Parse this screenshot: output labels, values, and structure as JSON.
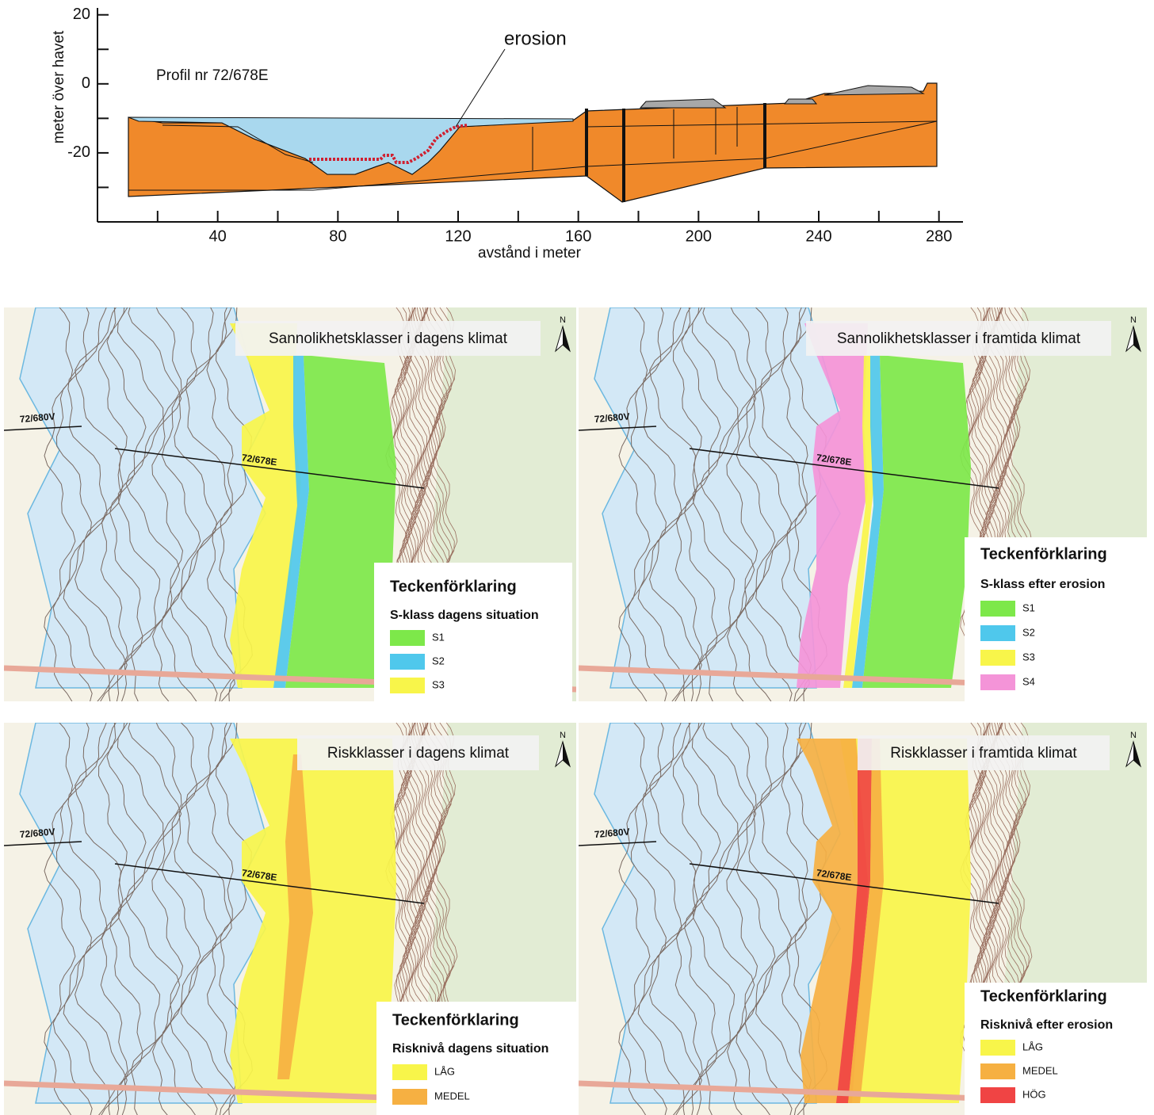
{
  "profile": {
    "title": "Profil nr 72/678E",
    "annotation": "erosion",
    "ylabel": "meter över havet",
    "xlabel": "avstånd i meter",
    "xlim": [
      0,
      288
    ],
    "xticks": [
      40,
      80,
      120,
      160,
      200,
      240,
      280
    ],
    "ylim": [
      -40,
      22
    ],
    "yticks": [
      20,
      0,
      -20
    ]
  },
  "maps": [
    {
      "title": "Sannolikhetsklasser i dagens klimat",
      "north": "N",
      "profile_labels": [
        "72/680V",
        "72/678E"
      ],
      "legend": {
        "title": "Teckenförklaring",
        "subtitle": "S-klass dagens situation",
        "items": [
          {
            "label": "S1",
            "color": "#7de84a"
          },
          {
            "label": "S2",
            "color": "#4fc8ec"
          },
          {
            "label": "S3",
            "color": "#f8f54a"
          }
        ]
      }
    },
    {
      "title": "Sannolikhetsklasser i framtida klimat",
      "north": "N",
      "profile_labels": [
        "72/680V",
        "72/678E"
      ],
      "legend": {
        "title": "Teckenförklaring",
        "subtitle": "S-klass efter erosion",
        "items": [
          {
            "label": "S1",
            "color": "#7de84a"
          },
          {
            "label": "S2",
            "color": "#4fc8ec"
          },
          {
            "label": "S3",
            "color": "#f8f54a"
          },
          {
            "label": "S4",
            "color": "#f494d8"
          }
        ]
      }
    },
    {
      "title": "Riskklasser i dagens klimat",
      "north": "N",
      "profile_labels": [
        "72/680V",
        "72/678E"
      ],
      "legend": {
        "title": "Teckenförklaring",
        "subtitle": "Risknivå dagens situation",
        "items": [
          {
            "label": "LÅG",
            "color": "#f8f54a"
          },
          {
            "label": "MEDEL",
            "color": "#f6b042"
          }
        ]
      }
    },
    {
      "title": "Riskklasser i framtida klimat",
      "north": "N",
      "profile_labels": [
        "72/680V",
        "72/678E"
      ],
      "legend": {
        "title": "Teckenförklaring",
        "subtitle": "Risknivå efter erosion",
        "items": [
          {
            "label": "LÅG",
            "color": "#f8f54a"
          },
          {
            "label": "MEDEL",
            "color": "#f6b042"
          },
          {
            "label": "HÖG",
            "color": "#f04444"
          }
        ]
      }
    }
  ]
}
